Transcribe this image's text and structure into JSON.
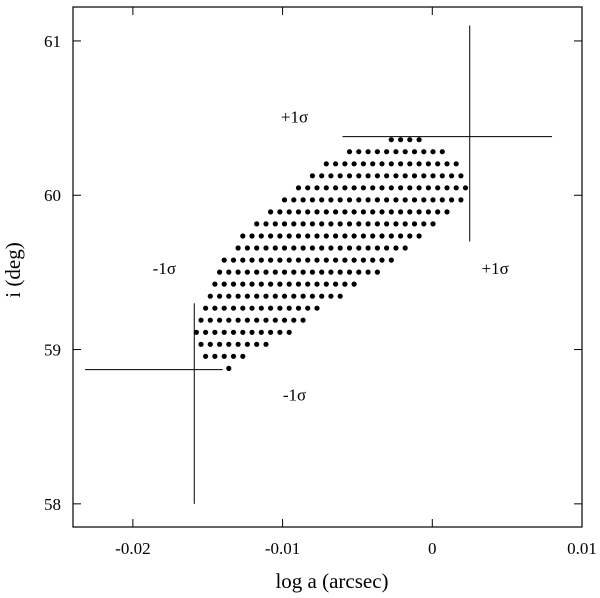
{
  "chart_data": {
    "type": "scatter",
    "title": "",
    "xlabel": "log a (arcsec)",
    "ylabel": "i (deg)",
    "xlim": [
      -0.024,
      0.01
    ],
    "ylim": [
      57.85,
      61.22
    ],
    "x_ticks": [
      -0.02,
      -0.01,
      0,
      0.01
    ],
    "x_tick_labels": [
      "-0.02",
      "-0.01",
      "0",
      "0.01"
    ],
    "y_ticks": [
      58,
      59,
      60,
      61
    ],
    "y_tick_labels": [
      "58",
      "59",
      "60",
      "61"
    ],
    "grid": false,
    "legend": "none",
    "marker_color": "#000000",
    "cloud": {
      "center": [
        -0.0066,
        59.62
      ],
      "grid_step_x": 0.00062,
      "grid_step_y": 0.078,
      "grid_skew": 0.00031,
      "outline": [
        [
          -0.016,
          59.05
        ],
        [
          -0.0155,
          59.27
        ],
        [
          -0.0141,
          59.55
        ],
        [
          -0.013,
          59.75
        ],
        [
          -0.0113,
          59.9
        ],
        [
          -0.0093,
          60.05
        ],
        [
          -0.0075,
          60.18
        ],
        [
          -0.0058,
          60.28
        ],
        [
          -0.004,
          60.35
        ],
        [
          -0.0015,
          60.38
        ],
        [
          0.0008,
          60.32
        ],
        [
          0.0025,
          60.1
        ],
        [
          0.0023,
          59.98
        ],
        [
          0.001,
          59.85
        ],
        [
          -0.001,
          59.7
        ],
        [
          -0.0035,
          59.5
        ],
        [
          -0.006,
          59.35
        ],
        [
          -0.0083,
          59.18
        ],
        [
          -0.011,
          59.03
        ],
        [
          -0.0133,
          58.87
        ],
        [
          -0.0148,
          58.9
        ]
      ]
    },
    "error_bars": [
      {
        "type": "vertical",
        "x": -0.0159,
        "y": [
          58.0,
          59.3
        ]
      },
      {
        "type": "horizontal",
        "y": 58.87,
        "x": [
          -0.0232,
          -0.014
        ]
      },
      {
        "type": "vertical",
        "x": 0.0025,
        "y": [
          59.7,
          61.1
        ]
      },
      {
        "type": "horizontal",
        "y": 60.38,
        "x": [
          -0.006,
          0.008
        ]
      }
    ],
    "annotations": [
      {
        "text": "+1σ",
        "x": -0.0092,
        "y": 60.47
      },
      {
        "text": "-1σ",
        "x": -0.0179,
        "y": 59.49
      },
      {
        "text": "+1σ",
        "x": 0.0042,
        "y": 59.49
      },
      {
        "text": "-1σ",
        "x": -0.0092,
        "y": 58.67
      }
    ]
  }
}
